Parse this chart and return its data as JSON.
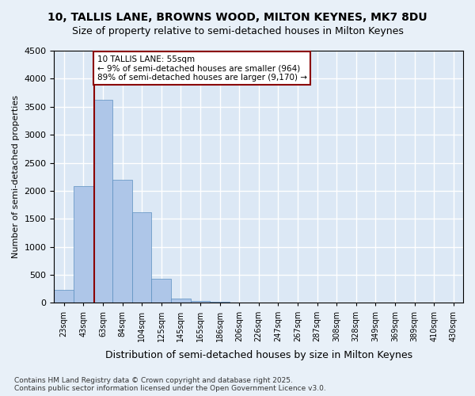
{
  "title_line1": "10, TALLIS LANE, BROWNS WOOD, MILTON KEYNES, MK7 8DU",
  "title_line2": "Size of property relative to semi-detached houses in Milton Keynes",
  "xlabel": "Distribution of semi-detached houses by size in Milton Keynes",
  "ylabel": "Number of semi-detached properties",
  "footnote": "Contains HM Land Registry data © Crown copyright and database right 2025.\nContains public sector information licensed under the Open Government Licence v3.0.",
  "bin_labels": [
    "23sqm",
    "43sqm",
    "63sqm",
    "84sqm",
    "104sqm",
    "125sqm",
    "145sqm",
    "165sqm",
    "186sqm",
    "206sqm",
    "226sqm",
    "247sqm",
    "267sqm",
    "287sqm",
    "308sqm",
    "328sqm",
    "349sqm",
    "369sqm",
    "389sqm",
    "410sqm",
    "430sqm"
  ],
  "bar_values": [
    230,
    2090,
    3620,
    2200,
    1620,
    430,
    80,
    40,
    20,
    10,
    5,
    3,
    2,
    1,
    1,
    0,
    0,
    0,
    0,
    0,
    0
  ],
  "bar_color": "#aec6e8",
  "bar_edge_color": "#5a8fc0",
  "property_line_bin_index": 1.55,
  "annotation_title": "10 TALLIS LANE: 55sqm",
  "annotation_line1": "← 9% of semi-detached houses are smaller (964)",
  "annotation_line2": "89% of semi-detached houses are larger (9,170) →",
  "annotation_box_color": "white",
  "annotation_box_edge_color": "darkred",
  "vline_color": "darkred",
  "ylim": [
    0,
    4500
  ],
  "yticks": [
    0,
    500,
    1000,
    1500,
    2000,
    2500,
    3000,
    3500,
    4000,
    4500
  ],
  "bg_color": "#e8f0f8",
  "plot_bg_color": "#dce8f5",
  "grid_color": "white"
}
